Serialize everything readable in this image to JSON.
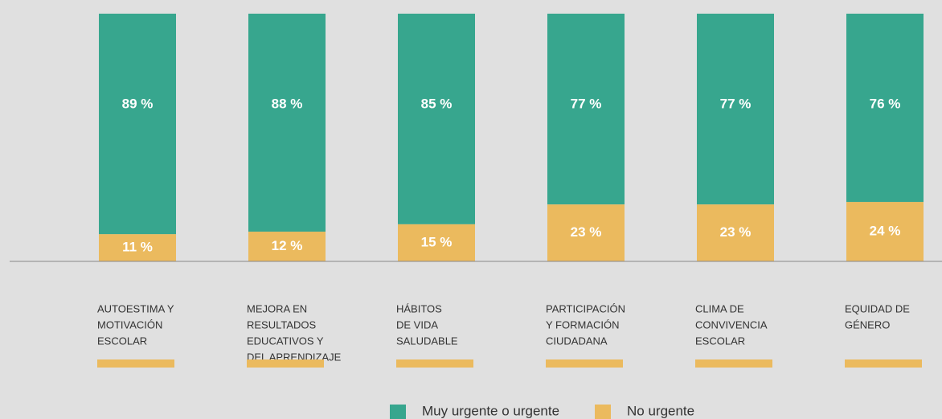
{
  "chart_data": {
    "type": "stacked_bar",
    "categories": [
      [
        "AUTOESTIMA Y",
        "MOTIVACIÓN",
        "ESCOLAR"
      ],
      [
        "MEJORA EN",
        "RESULTADOS",
        "EDUCATIVOS Y",
        "DEL APRENDIZAJE"
      ],
      [
        "HÁBITOS",
        "DE VIDA",
        "SALUDABLE"
      ],
      [
        "PARTICIPACIÓN",
        "Y FORMACIÓN",
        "CIUDADANA"
      ],
      [
        "CLIMA DE",
        "CONVIVENCIA",
        "ESCOLAR"
      ],
      [
        "EQUIDAD DE",
        "GÉNERO"
      ]
    ],
    "series": [
      {
        "name": "No urgente",
        "color": "#ebba5e",
        "values": [
          11,
          12,
          15,
          23,
          23,
          24
        ],
        "value_labels": [
          "11 %",
          "12 %",
          "15 %",
          "23 %",
          "23 %",
          "24 %"
        ]
      },
      {
        "name": "Muy urgente o urgente",
        "color": "#37a68e",
        "values": [
          89,
          88,
          85,
          77,
          77,
          76
        ],
        "value_labels": [
          "89 %",
          "88 %",
          "85 %",
          "77 %",
          "77 %",
          "76 %"
        ]
      }
    ],
    "ylim": [
      0,
      100
    ]
  }
}
